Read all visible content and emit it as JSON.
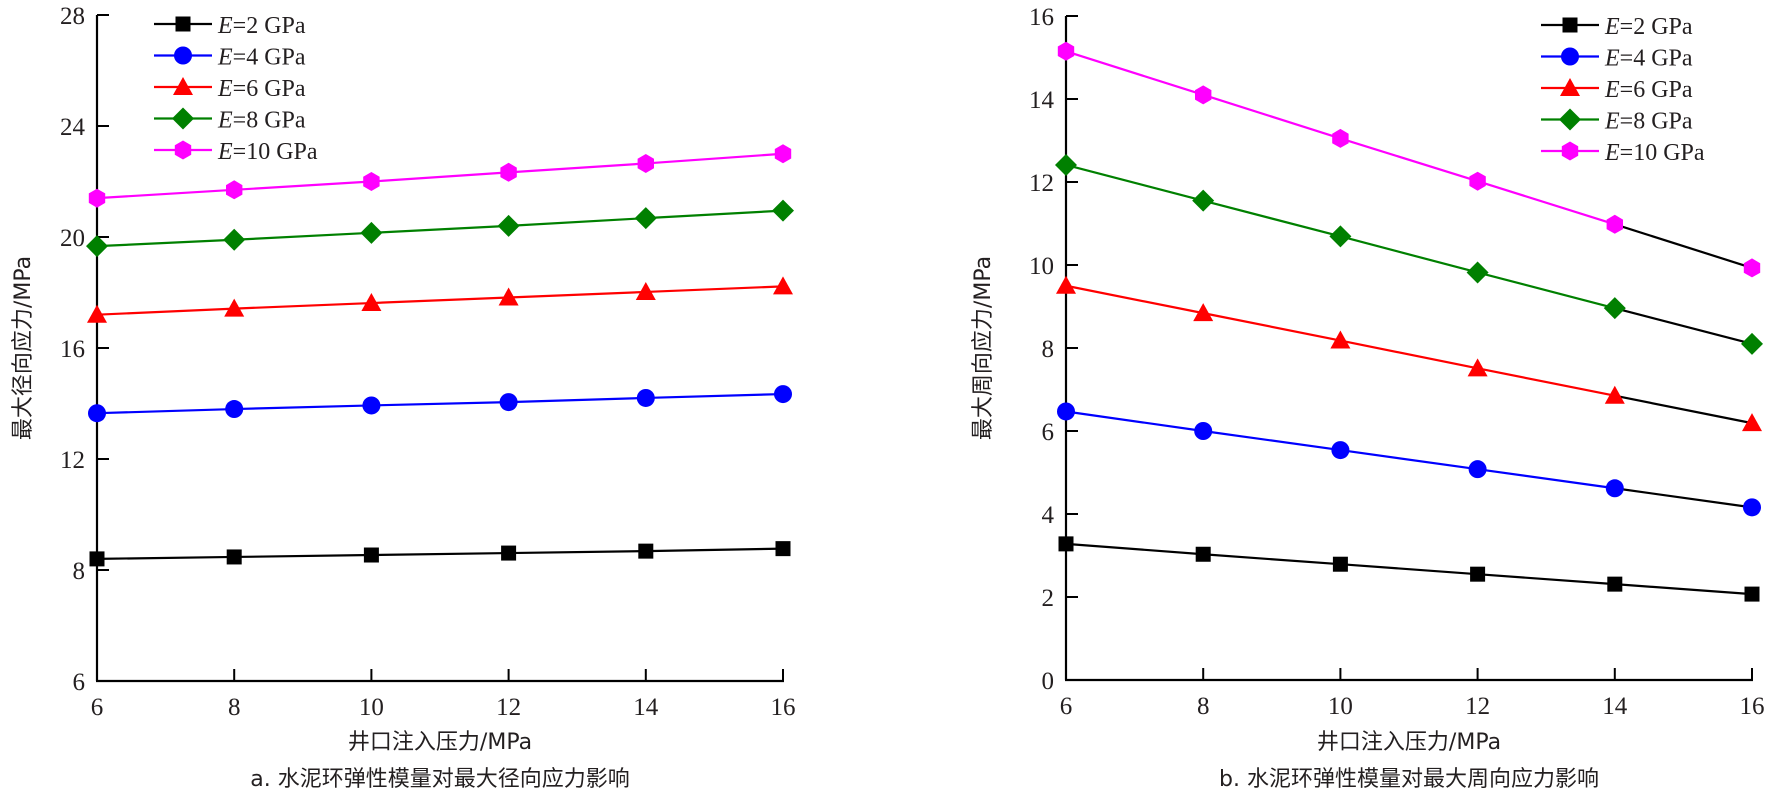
{
  "chart_data": [
    {
      "type": "line",
      "id": "a",
      "title": "a. 水泥环弹性模量对最大径向应力影响",
      "xlabel": "井口注入压力/MPa",
      "ylabel": "最大径向应力/MPa",
      "x": [
        6,
        8,
        10,
        12,
        14,
        16
      ],
      "xticks": [
        "6",
        "8",
        "10",
        "12",
        "14",
        "16"
      ],
      "xlim": [
        6,
        16
      ],
      "yticks": [
        "6",
        "8",
        "12",
        "16",
        "20",
        "24",
        "28"
      ],
      "ytick_values": [
        6,
        8,
        12,
        16,
        20,
        24,
        28
      ],
      "ylim": [
        6,
        28
      ],
      "y_axis_note": "bottom tick '6' sits one 4-unit step below '8' (axis break)",
      "grid": false,
      "legend_position": "top-left",
      "series": [
        {
          "name": "E=2 GPa",
          "legend_prefix": "E",
          "legend_suffix": "=2 GPa",
          "color": "#000000",
          "marker": "square",
          "values": [
            8.4,
            8.47,
            8.54,
            8.61,
            8.68,
            8.77
          ]
        },
        {
          "name": "E=4 GPa",
          "legend_prefix": "E",
          "legend_suffix": "=4 GPa",
          "color": "#0000ff",
          "marker": "circle",
          "values": [
            13.65,
            13.8,
            13.93,
            14.05,
            14.2,
            14.34
          ]
        },
        {
          "name": "E=6 GPa",
          "legend_prefix": "E",
          "legend_suffix": "=6 GPa",
          "color": "#ff0000",
          "marker": "triangle",
          "values": [
            17.2,
            17.42,
            17.62,
            17.82,
            18.02,
            18.22
          ]
        },
        {
          "name": "E=8 GPa",
          "legend_prefix": "E",
          "legend_suffix": "=8 GPa",
          "color": "#008000",
          "marker": "diamond",
          "values": [
            19.67,
            19.9,
            20.15,
            20.4,
            20.68,
            20.95
          ]
        },
        {
          "name": "E=10 GPa",
          "legend_prefix": "E",
          "legend_suffix": "=10 GPa",
          "color": "#ff00ff",
          "marker": "hexagon",
          "values": [
            21.4,
            21.7,
            22.0,
            22.33,
            22.65,
            23.0
          ]
        }
      ]
    },
    {
      "type": "line",
      "id": "b",
      "title": "b. 水泥环弹性模量对最大周向应力影响",
      "xlabel": "井口注入压力/MPa",
      "ylabel": "最大周向应力/MPa",
      "x": [
        6,
        8,
        10,
        12,
        14,
        16
      ],
      "xticks": [
        "6",
        "8",
        "10",
        "12",
        "14",
        "16"
      ],
      "xlim": [
        6,
        16
      ],
      "yticks": [
        "0",
        "2",
        "4",
        "6",
        "8",
        "10",
        "12",
        "14",
        "16"
      ],
      "ytick_values": [
        0,
        2,
        4,
        6,
        8,
        10,
        12,
        14,
        16
      ],
      "ylim": [
        0,
        16
      ],
      "last_segment_color": "#000000",
      "grid": false,
      "legend_position": "top-right",
      "series": [
        {
          "name": "E=2 GPa",
          "legend_prefix": "E",
          "legend_suffix": "=2 GPa",
          "color": "#000000",
          "marker": "square",
          "values": [
            3.28,
            3.03,
            2.79,
            2.55,
            2.31,
            2.07
          ]
        },
        {
          "name": "E=4 GPa",
          "legend_prefix": "E",
          "legend_suffix": "=4 GPa",
          "color": "#0000ff",
          "marker": "circle",
          "values": [
            6.47,
            6.0,
            5.54,
            5.08,
            4.62,
            4.16
          ]
        },
        {
          "name": "E=6 GPa",
          "legend_prefix": "E",
          "legend_suffix": "=6 GPa",
          "color": "#ff0000",
          "marker": "triangle",
          "values": [
            9.5,
            8.84,
            8.18,
            7.51,
            6.85,
            6.19
          ]
        },
        {
          "name": "E=8 GPa",
          "legend_prefix": "E",
          "legend_suffix": "=8 GPa",
          "color": "#008000",
          "marker": "diamond",
          "values": [
            12.41,
            11.55,
            10.69,
            9.82,
            8.96,
            8.1
          ]
        },
        {
          "name": "E=10 GPa",
          "legend_prefix": "E",
          "legend_suffix": "=10 GPa",
          "color": "#ff00ff",
          "marker": "hexagon",
          "values": [
            15.15,
            14.1,
            13.05,
            12.02,
            10.98,
            9.93
          ]
        }
      ]
    }
  ]
}
